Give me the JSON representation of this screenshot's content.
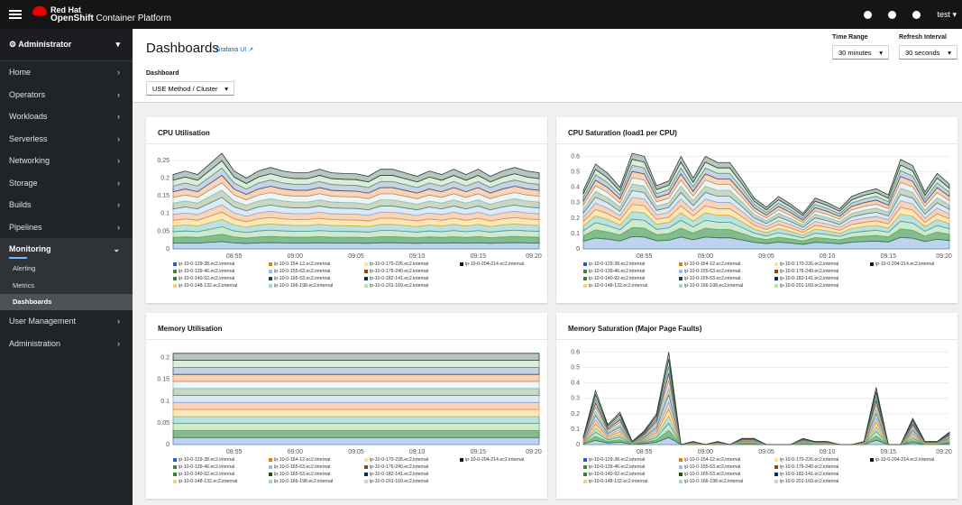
{
  "masthead": {
    "brand_top": "Red Hat",
    "brand_bold": "OpenShift",
    "brand_rest": " Container Platform",
    "user": "test"
  },
  "sidebar": {
    "perspective": "Administrator",
    "items": [
      {
        "label": "Home"
      },
      {
        "label": "Operators"
      },
      {
        "label": "Workloads"
      },
      {
        "label": "Serverless"
      },
      {
        "label": "Networking"
      },
      {
        "label": "Storage"
      },
      {
        "label": "Builds"
      },
      {
        "label": "Pipelines"
      }
    ],
    "monitoring": {
      "label": "Monitoring",
      "children": [
        "Alerting",
        "Metrics",
        "Dashboards"
      ]
    },
    "after": [
      {
        "label": "User Management"
      },
      {
        "label": "Administration"
      }
    ]
  },
  "header": {
    "title": "Dashboards",
    "grafana_link": "Grafana UI",
    "dashboard_label": "Dashboard",
    "dashboard_value": "USE Method / Cluster",
    "time_range_label": "Time Range",
    "time_range_value": "30 minutes",
    "refresh_label": "Refresh Interval",
    "refresh_value": "30 seconds"
  },
  "legend": [
    {
      "name": "ip-10-0-129-38.ec2.internal",
      "color": "#2b59c3"
    },
    {
      "name": "ip-10-0-154-12.ec2.internal",
      "color": "#ec7a08"
    },
    {
      "name": "ip-10-0-170-226.ec2.internal",
      "color": "#f9e0a2"
    },
    {
      "name": "ip-10-0-204-214.ec2.internal",
      "color": "#151515"
    },
    {
      "name": "ip-10-0-139-46.ec2.internal",
      "color": "#3e8635"
    },
    {
      "name": "ip-10-0-155-63.ec2.internal",
      "color": "#8bc1f7"
    },
    {
      "name": "ip-10-0-176-240.ec2.internal",
      "color": "#8f4700"
    },
    {
      "name": "",
      "color": ""
    },
    {
      "name": "ip-10-0-140-92.ec2.internal",
      "color": "#38812f"
    },
    {
      "name": "ip-10-0-165-53.ec2.internal",
      "color": "#1e4f18"
    },
    {
      "name": "ip-10-0-182-141.ec2.internal",
      "color": "#002f5d"
    },
    {
      "name": "",
      "color": ""
    },
    {
      "name": "ip-10-0-148-132.ec2.internal",
      "color": "#f6d173"
    },
    {
      "name": "ip-10-0-166-198.ec2.internal",
      "color": "#a2d9d9"
    },
    {
      "name": "ip-10-0-201-169.ec2.internal",
      "color": "#bde2b9"
    },
    {
      "name": "",
      "color": ""
    }
  ],
  "chart_data": [
    {
      "type": "area",
      "title": "CPU Utilisation",
      "x": [
        "08:55",
        "09:00",
        "09:05",
        "09:10",
        "09:15",
        "09:20"
      ],
      "ylim": [
        0,
        0.27
      ],
      "yticks": [
        0,
        0.05,
        0.1,
        0.15,
        0.2,
        0.25
      ],
      "totals": [
        0.21,
        0.22,
        0.21,
        0.24,
        0.27,
        0.22,
        0.2,
        0.22,
        0.23,
        0.22,
        0.215,
        0.215,
        0.225,
        0.215,
        0.213,
        0.212,
        0.205,
        0.225,
        0.225,
        0.215,
        0.205,
        0.22,
        0.21,
        0.225,
        0.21,
        0.225,
        0.205,
        0.22,
        0.23,
        0.22,
        0.215
      ]
    },
    {
      "type": "area",
      "title": "CPU Saturation (load1 per CPU)",
      "x": [
        "08:55",
        "09:00",
        "09:05",
        "09:10",
        "09:15",
        "09:20"
      ],
      "ylim": [
        0,
        0.62
      ],
      "yticks": [
        0,
        0.1,
        0.2,
        0.3,
        0.4,
        0.5,
        0.6
      ],
      "totals": [
        0.38,
        0.55,
        0.49,
        0.4,
        0.62,
        0.6,
        0.41,
        0.44,
        0.6,
        0.46,
        0.6,
        0.56,
        0.56,
        0.45,
        0.33,
        0.27,
        0.34,
        0.29,
        0.23,
        0.33,
        0.3,
        0.26,
        0.34,
        0.37,
        0.39,
        0.35,
        0.58,
        0.54,
        0.37,
        0.49,
        0.42
      ]
    },
    {
      "type": "area",
      "title": "Memory Utilisation",
      "x": [
        "08:55",
        "09:00",
        "09:05",
        "09:10",
        "09:15",
        "09:20"
      ],
      "ylim": [
        0,
        0.22
      ],
      "yticks": [
        0,
        0.05,
        0.1,
        0.15,
        0.2
      ],
      "totals": [
        0.21,
        0.21,
        0.21,
        0.21,
        0.21,
        0.21,
        0.21,
        0.21,
        0.21,
        0.21,
        0.21,
        0.21,
        0.21,
        0.21,
        0.21,
        0.21,
        0.21,
        0.21,
        0.21,
        0.21,
        0.21,
        0.21,
        0.21,
        0.21,
        0.21,
        0.21,
        0.21,
        0.21,
        0.21,
        0.21,
        0.21
      ]
    },
    {
      "type": "area",
      "title": "Memory Saturation (Major Page Faults)",
      "x": [
        "08:55",
        "09:00",
        "09:05",
        "09:10",
        "09:15",
        "09:20"
      ],
      "ylim": [
        0,
        0.62
      ],
      "yticks": [
        0,
        0.1,
        0.2,
        0.3,
        0.4,
        0.5,
        0.6
      ],
      "totals": [
        0.05,
        0.35,
        0.13,
        0.21,
        0.02,
        0.09,
        0.2,
        0.6,
        0,
        0.02,
        0,
        0.02,
        0,
        0.04,
        0.04,
        0,
        0,
        0,
        0.04,
        0.02,
        0.02,
        0,
        0,
        0.02,
        0.37,
        0,
        0,
        0.17,
        0.02,
        0.02,
        0.08
      ]
    }
  ]
}
